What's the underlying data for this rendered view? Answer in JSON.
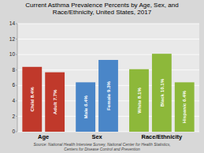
{
  "chart_data": {
    "type": "bar",
    "title": "Current Asthma Prevalence Percents by Age, Sex, and\nRace/Ethnicity, United States, 2017",
    "categories": [
      "Age",
      null,
      "Sex",
      null,
      "Race/Ethnicity",
      null,
      null
    ],
    "values": [
      8.4,
      7.7,
      6.4,
      9.3,
      8.1,
      10.1,
      6.4
    ],
    "value_labels": [
      "Child 8.4%",
      "Adult 7.7%",
      "Male 6.4%",
      "Female 9.3%",
      "White 8.1%",
      "Black 10.1%",
      "Hispanic 6.4%"
    ],
    "data_labels": true,
    "colors": [
      "#c0392b",
      "#c0392b",
      "#4a86c8",
      "#4a86c8",
      "#8db83a",
      "#8db83a",
      "#8db83a"
    ],
    "ylim": [
      0,
      14
    ],
    "yticks": [
      0,
      2,
      4,
      6,
      8,
      10,
      12,
      14
    ],
    "grid": true,
    "annotations": [
      "Source: National Health Interview Survey, National Center for Health Statistics,\nCenters for Disease Control and Prevention"
    ]
  }
}
